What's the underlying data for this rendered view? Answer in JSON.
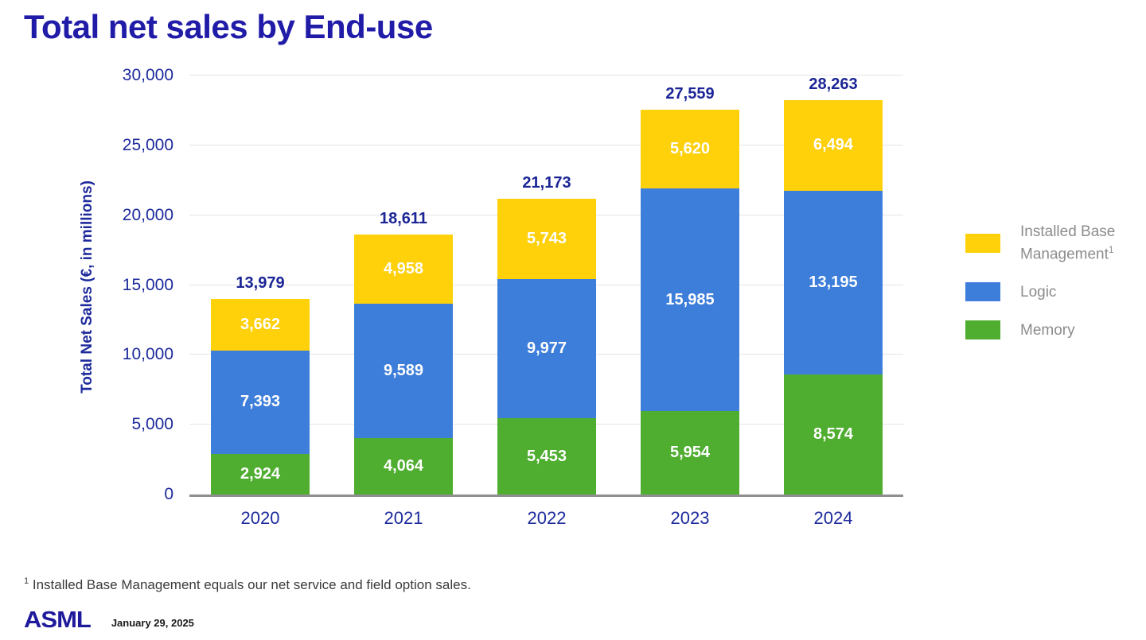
{
  "slide": {
    "title": "Total net sales by End-use",
    "footnote_sup": "1",
    "footnote": " Installed Base Management equals our net service and field option sales.",
    "logo": "ASML",
    "date": "January 29, 2025"
  },
  "chart_data": {
    "type": "bar",
    "stacked": true,
    "title": "Total net sales by End-use",
    "ylabel": "Total Net Sales (€, in millions)",
    "xlabel": "",
    "categories": [
      "2020",
      "2021",
      "2022",
      "2023",
      "2024"
    ],
    "series": [
      {
        "name": "Memory",
        "color": "#4fae2f",
        "values": [
          2924,
          4064,
          5453,
          5954,
          8574
        ]
      },
      {
        "name": "Logic",
        "color": "#3d7edb",
        "values": [
          7393,
          9589,
          9977,
          15985,
          13195
        ]
      },
      {
        "name": "Installed Base Management",
        "sup": "1",
        "color": "#ffd10a",
        "values": [
          3662,
          4958,
          5743,
          5620,
          6494
        ]
      }
    ],
    "totals": [
      13979,
      18611,
      21173,
      27559,
      28263
    ],
    "ylim": [
      0,
      30000
    ],
    "ytick_step": 5000,
    "yticks": [
      "0",
      "5,000",
      "10,000",
      "15,000",
      "20,000",
      "25,000",
      "30,000"
    ],
    "grid": true,
    "legend_position": "right",
    "legend": [
      {
        "label": "Installed Base Management",
        "sup": "1",
        "color": "#ffd10a"
      },
      {
        "label": "Logic",
        "sup": "",
        "color": "#3d7edb"
      },
      {
        "label": "Memory",
        "sup": "",
        "color": "#4fae2f"
      }
    ]
  }
}
